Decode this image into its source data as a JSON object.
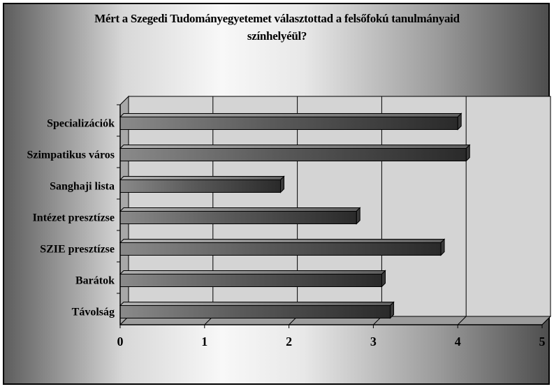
{
  "chart_data": {
    "type": "bar",
    "orientation": "horizontal",
    "title": "Mért a Szegedi Tudományegyetemet választottad a felsőfokú tanulmányaid színhelyéül?",
    "title_lines": [
      "Mért a Szegedi Tudományegyetemet választottad a felsőfokú tanulmányaid",
      "színhelyéül?"
    ],
    "categories": [
      "Specializációk",
      "Szimpatikus város",
      "Sanghaji lista",
      "Intézet presztízse",
      "SZIE presztízse",
      "Barátok",
      "Távolság"
    ],
    "values": [
      4.0,
      4.1,
      1.9,
      2.8,
      3.8,
      3.1,
      3.2
    ],
    "xlim": [
      0,
      5
    ],
    "xticks": [
      "0",
      "1",
      "2",
      "3",
      "4",
      "5"
    ],
    "xlabel": "",
    "ylabel": "",
    "grid": "vertical",
    "legend": "none",
    "bar_color": "#5a5a5a",
    "plot_bg_color": "#d4d4d4"
  }
}
